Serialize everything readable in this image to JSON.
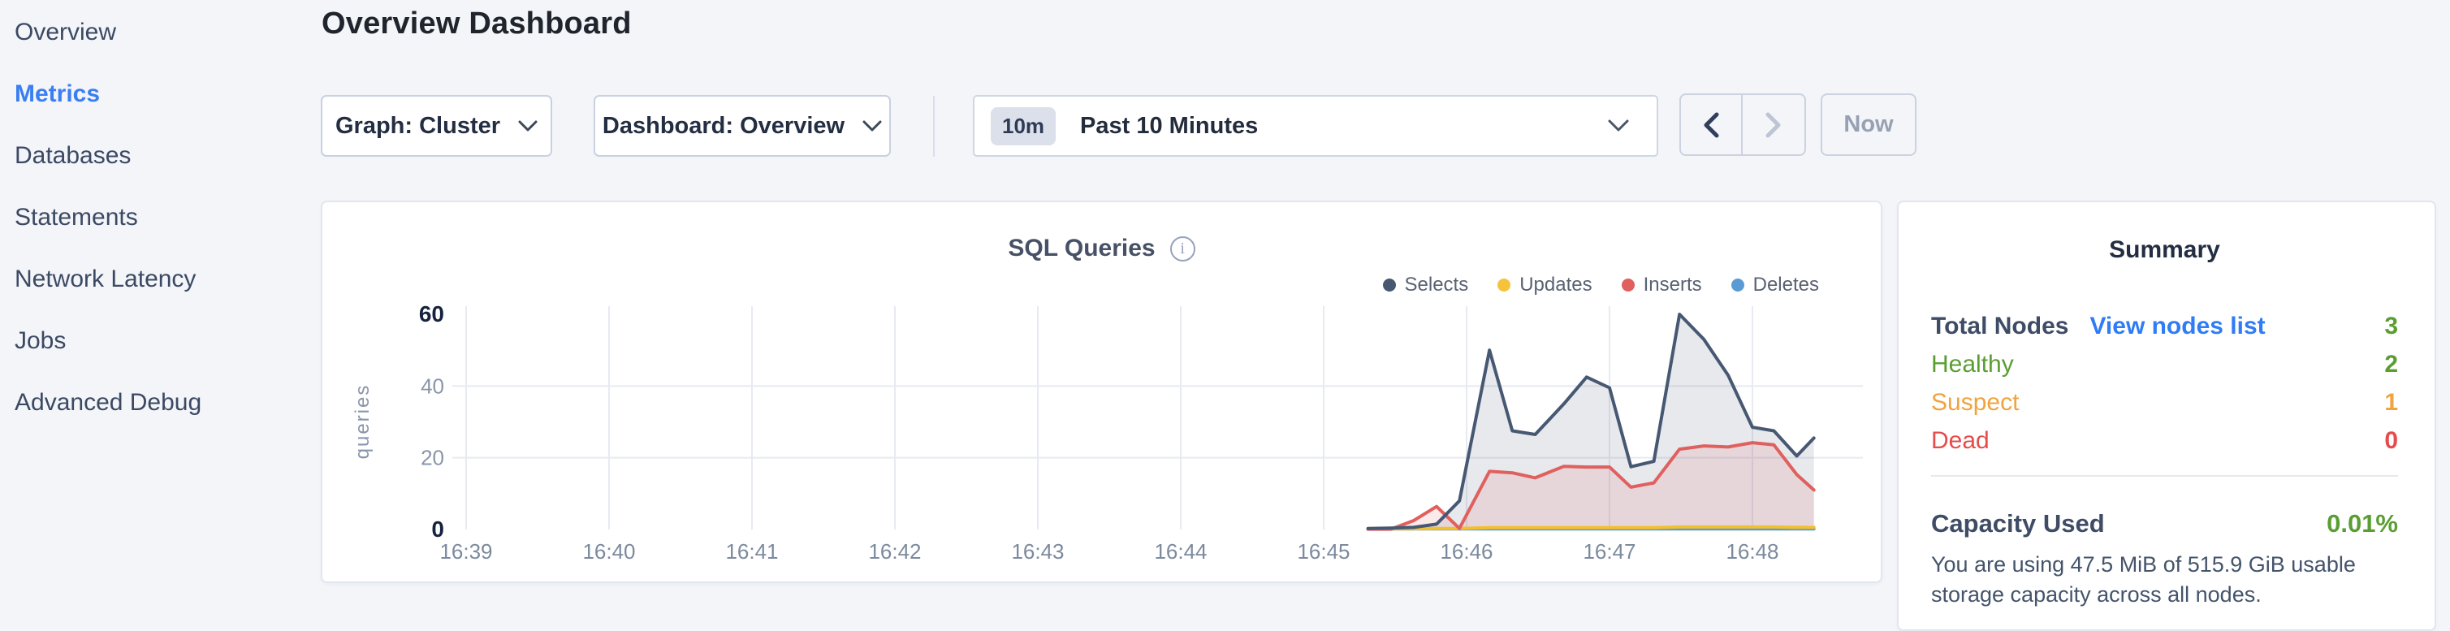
{
  "sidebar": {
    "items": [
      {
        "label": "Overview",
        "active": false
      },
      {
        "label": "Metrics",
        "active": true
      },
      {
        "label": "Databases",
        "active": false
      },
      {
        "label": "Statements",
        "active": false
      },
      {
        "label": "Network Latency",
        "active": false
      },
      {
        "label": "Jobs",
        "active": false
      },
      {
        "label": "Advanced Debug",
        "active": false
      }
    ]
  },
  "header": {
    "title": "Overview Dashboard"
  },
  "toolbar": {
    "graph_dropdown": "Graph: Cluster",
    "dashboard_dropdown": "Dashboard: Overview",
    "time_window_badge": "10m",
    "time_window_label": "Past 10 Minutes",
    "now_button": "Now"
  },
  "chart": {
    "title": "SQL Queries",
    "info_glyph": "i"
  },
  "chart_data": {
    "type": "area",
    "title": "SQL Queries",
    "ylabel": "queries",
    "x_ticks": [
      "16:39",
      "16:40",
      "16:41",
      "16:42",
      "16:43",
      "16:44",
      "16:45",
      "16:46",
      "16:47",
      "16:48"
    ],
    "y_ticks": [
      0,
      20,
      40,
      60
    ],
    "y_bold_ticks": [
      0,
      60
    ],
    "ylim": [
      0,
      60
    ],
    "grid": true,
    "legend_position": "top-right",
    "x_minutes_after_1639": [
      6.31,
      6.47,
      6.63,
      6.79,
      6.95,
      7.16,
      7.32,
      7.48,
      7.68,
      7.84,
      8.0,
      8.15,
      8.31,
      8.49,
      8.66,
      8.83,
      9.0,
      9.15,
      9.31,
      9.43
    ],
    "series": [
      {
        "name": "Selects",
        "color": "#475872",
        "fill": "rgba(71,88,114,0.13)",
        "values": [
          0.3,
          0.4,
          0.6,
          1.5,
          8,
          50,
          27.5,
          26.5,
          35,
          42.5,
          39.5,
          17.5,
          19,
          60,
          53,
          43,
          28.5,
          27.5,
          20.5,
          25.5
        ]
      },
      {
        "name": "Updates",
        "color": "#f2c02f",
        "fill": "none",
        "values": [
          0.2,
          0.2,
          0.2,
          0.3,
          0.3,
          0.5,
          0.5,
          0.5,
          0.5,
          0.5,
          0.5,
          0.5,
          0.5,
          0.7,
          0.7,
          0.7,
          0.7,
          0.7,
          0.6,
          0.6
        ]
      },
      {
        "name": "Inserts",
        "color": "#e0605e",
        "fill": "rgba(224,96,94,0.13)",
        "values": [
          0.1,
          0.1,
          2.5,
          6.4,
          0.3,
          16.2,
          15.8,
          14.4,
          17.6,
          17.4,
          17.4,
          11.8,
          13,
          22.4,
          23.3,
          23,
          24.2,
          23.6,
          15.3,
          11
        ]
      },
      {
        "name": "Deletes",
        "color": "#5b9bd3",
        "fill": "none",
        "values": [
          0.15,
          0.15,
          0.15,
          0.15,
          0.15,
          0.15,
          0.15,
          0.15,
          0.15,
          0.15,
          0.15,
          0.15,
          0.15,
          0.15,
          0.15,
          0.15,
          0.15,
          0.15,
          0.15,
          0.15
        ]
      }
    ],
    "legend": [
      {
        "label": "Selects",
        "color": "#475872"
      },
      {
        "label": "Updates",
        "color": "#f5c33b"
      },
      {
        "label": "Inserts",
        "color": "#e0605e"
      },
      {
        "label": "Deletes",
        "color": "#5b9bd3"
      }
    ]
  },
  "summary": {
    "title": "Summary",
    "rows": [
      {
        "label": "Total Nodes",
        "link": "View nodes list",
        "value": "3",
        "label_color": "#3e4c66",
        "value_color": "#5a9e32"
      },
      {
        "label": "Healthy",
        "value": "2",
        "label_color": "#5a9e32",
        "value_color": "#5a9e32"
      },
      {
        "label": "Suspect",
        "value": "1",
        "label_color": "#f0a33f",
        "value_color": "#f0a33f"
      },
      {
        "label": "Dead",
        "value": "0",
        "label_color": "#e64c4b",
        "value_color": "#e64c4b"
      }
    ],
    "capacity": {
      "label": "Capacity Used",
      "value": "0.01%",
      "value_color": "#5a9e32",
      "description": "You are using 47.5 MiB of 515.9 GiB usable storage capacity across all nodes."
    },
    "link_color": "#2f7cf6"
  },
  "colors": {
    "page_bg": "#f3f5f9",
    "active_nav": "#3a7ef2",
    "grid_line": "#e7eaf1",
    "tick_muted": "#8995ab",
    "tick_bold": "#16233f",
    "x_tick": "#7c8a9e"
  }
}
